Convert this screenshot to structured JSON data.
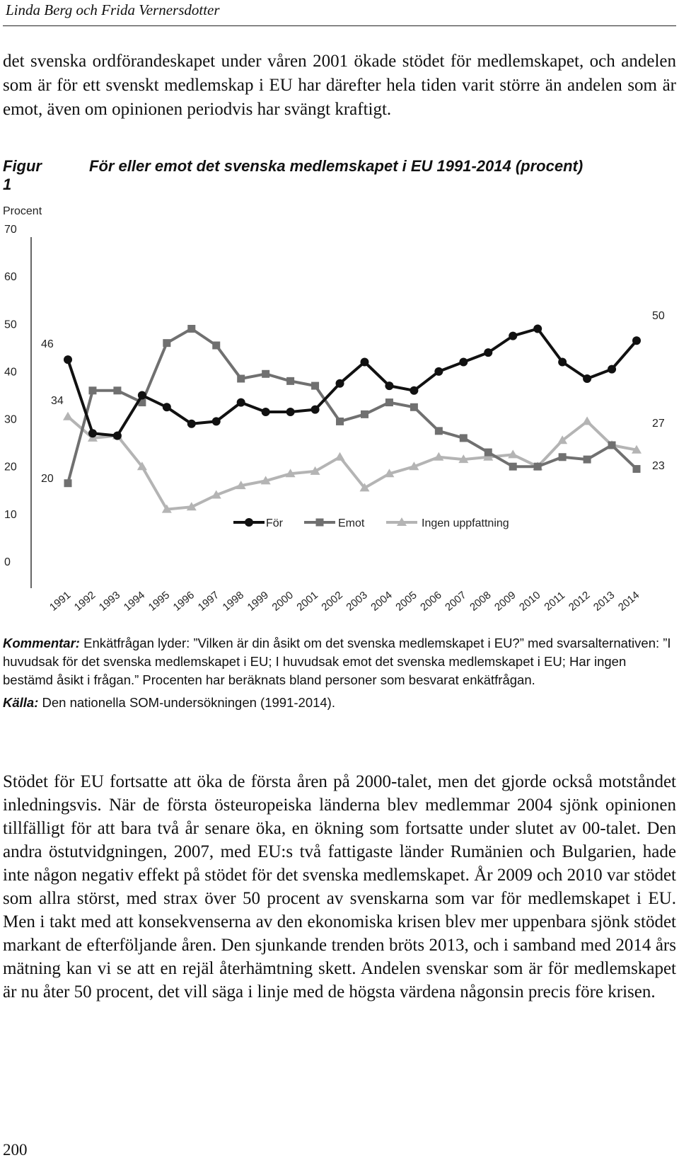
{
  "header": {
    "running_head": "Linda Berg och Frida Vernersdotter"
  },
  "body": {
    "paragraph_1": "det svenska ordförandeskapet under våren 2001 ökade stödet för medlemskapet, och andelen som är för ett svenskt medlemskap i EU har därefter hela tiden varit större än andelen som är emot, även om opinionen periodvis har svängt kraftigt.",
    "paragraph_2": "Stödet för EU fortsatte att öka de första åren på 2000-talet, men det gjorde också motståndet inledningsvis. När de första östeuropeiska länderna blev medlemmar 2004 sjönk opinionen tillfälligt för att bara två år senare öka, en ökning som fortsatte under slutet av 00-talet. Den andra östutvidgningen, 2007, med EU:s två fattigaste länder Rumänien och Bulgarien, hade inte någon negativ effekt på stödet för det svenska medlemskapet. År 2009 och 2010 var stödet som allra störst, med strax över 50 procent av svenskarna som var för medlemskapet i EU. Men i takt med att konsekvenserna av den ekonomiska krisen blev mer uppenbara sjönk stödet markant de efterföljande åren. Den sjunkande trenden bröts 2013, och i samband med 2014 års mätning kan vi se att en rejäl återhämtning skett. Andelen svenskar som är för medlemskapet är nu åter 50 procent, det vill säga i linje med de högsta värdena någonsin precis före krisen."
  },
  "figure": {
    "label": "Figur 1",
    "title": "För eller emot det svenska medlemskapet i EU 1991-2014 (procent)"
  },
  "chart_data": {
    "type": "line",
    "title": "För eller emot det svenska medlemskapet i EU 1991-2014 (procent)",
    "ylabel": "Procent",
    "xlabel": "",
    "ylim": [
      0,
      70
    ],
    "yticks": [
      0,
      10,
      20,
      30,
      40,
      50,
      60,
      70
    ],
    "x": [
      "1991",
      "1992",
      "1993",
      "1994",
      "1995",
      "1996",
      "1997",
      "1998",
      "1999",
      "2000",
      "2001",
      "2002",
      "2003",
      "2004",
      "2005",
      "2006",
      "2007",
      "2008",
      "2009",
      "2010",
      "2011",
      "2012",
      "2013",
      "2014"
    ],
    "series": [
      {
        "name": "För",
        "marker": "circle",
        "color": "#111111",
        "values": [
          46,
          30.5,
          30,
          38.5,
          36,
          32.5,
          33,
          37,
          35,
          35,
          35.5,
          41,
          45.5,
          40.5,
          39.5,
          43.5,
          45.5,
          47.5,
          51,
          52.5,
          45.5,
          42,
          44,
          50
        ],
        "start_label": "46",
        "end_label": "50"
      },
      {
        "name": "Emot",
        "marker": "square",
        "color": "#707070",
        "values": [
          20,
          39.5,
          39.5,
          37,
          49.5,
          52.5,
          49,
          42,
          43,
          41.5,
          40.5,
          33,
          34.5,
          37,
          36,
          31,
          29.5,
          26.5,
          23.5,
          23.5,
          25.5,
          25,
          28,
          23
        ],
        "start_label": "20",
        "end_label": "23"
      },
      {
        "name": "Ingen uppfattning",
        "marker": "triangle",
        "color": "#b4b4b4",
        "values": [
          34,
          29.5,
          30,
          23.5,
          14.5,
          15,
          17.5,
          19.5,
          20.5,
          22,
          22.5,
          25.5,
          19,
          22,
          23.5,
          25.5,
          25,
          25.5,
          26,
          23.5,
          29,
          33,
          28,
          27
        ],
        "start_label": "34",
        "end_label": "27"
      }
    ],
    "legend_placement": "bottom-center",
    "grid": false
  },
  "comment": {
    "kommentar_label": "Kommentar:",
    "kommentar_text": " Enkätfrågan lyder: ”Vilken är din åsikt om det svenska medlemskapet i EU?” med svarsalternativen: ”I huvudsak för det svenska medlemskapet i EU; I huvudsak emot det svenska medlemskapet i EU; Har ingen bestämd åsikt i frågan.” Procenten har beräknats bland personer som besvarat enkätfrågan.",
    "kalla_label": "Källa:",
    "kalla_text": " Den nationella SOM-undersökningen (1991-2014)."
  },
  "footer": {
    "page_number": "200"
  }
}
